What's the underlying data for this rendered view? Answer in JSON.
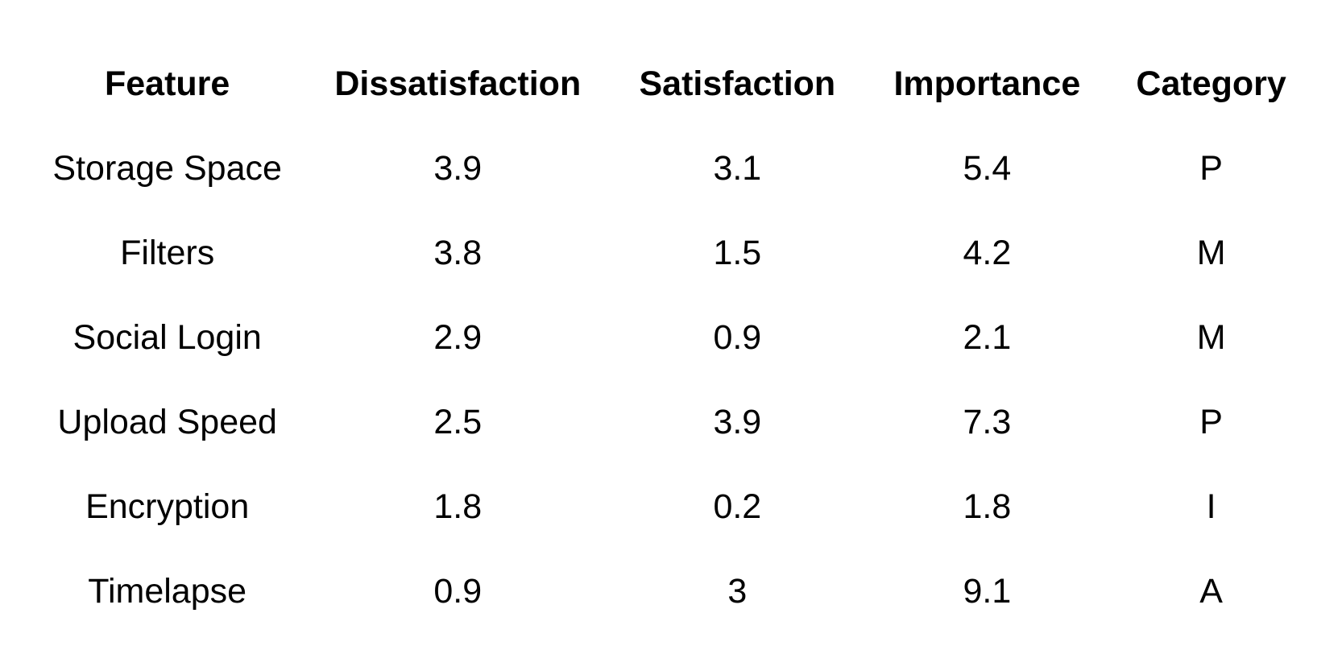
{
  "table": {
    "columns": [
      "Feature",
      "Dissatisfaction",
      "Satisfaction",
      "Importance",
      "Category"
    ],
    "rows": [
      [
        "Storage Space",
        "3.9",
        "3.1",
        "5.4",
        "P"
      ],
      [
        "Filters",
        "3.8",
        "1.5",
        "4.2",
        "M"
      ],
      [
        "Social Login",
        "2.9",
        "0.9",
        "2.1",
        "M"
      ],
      [
        "Upload Speed",
        "2.5",
        "3.9",
        "7.3",
        "P"
      ],
      [
        "Encryption",
        "1.8",
        "0.2",
        "1.8",
        "I"
      ],
      [
        "Timelapse",
        "0.9",
        "3",
        "9.1",
        "A"
      ]
    ]
  }
}
